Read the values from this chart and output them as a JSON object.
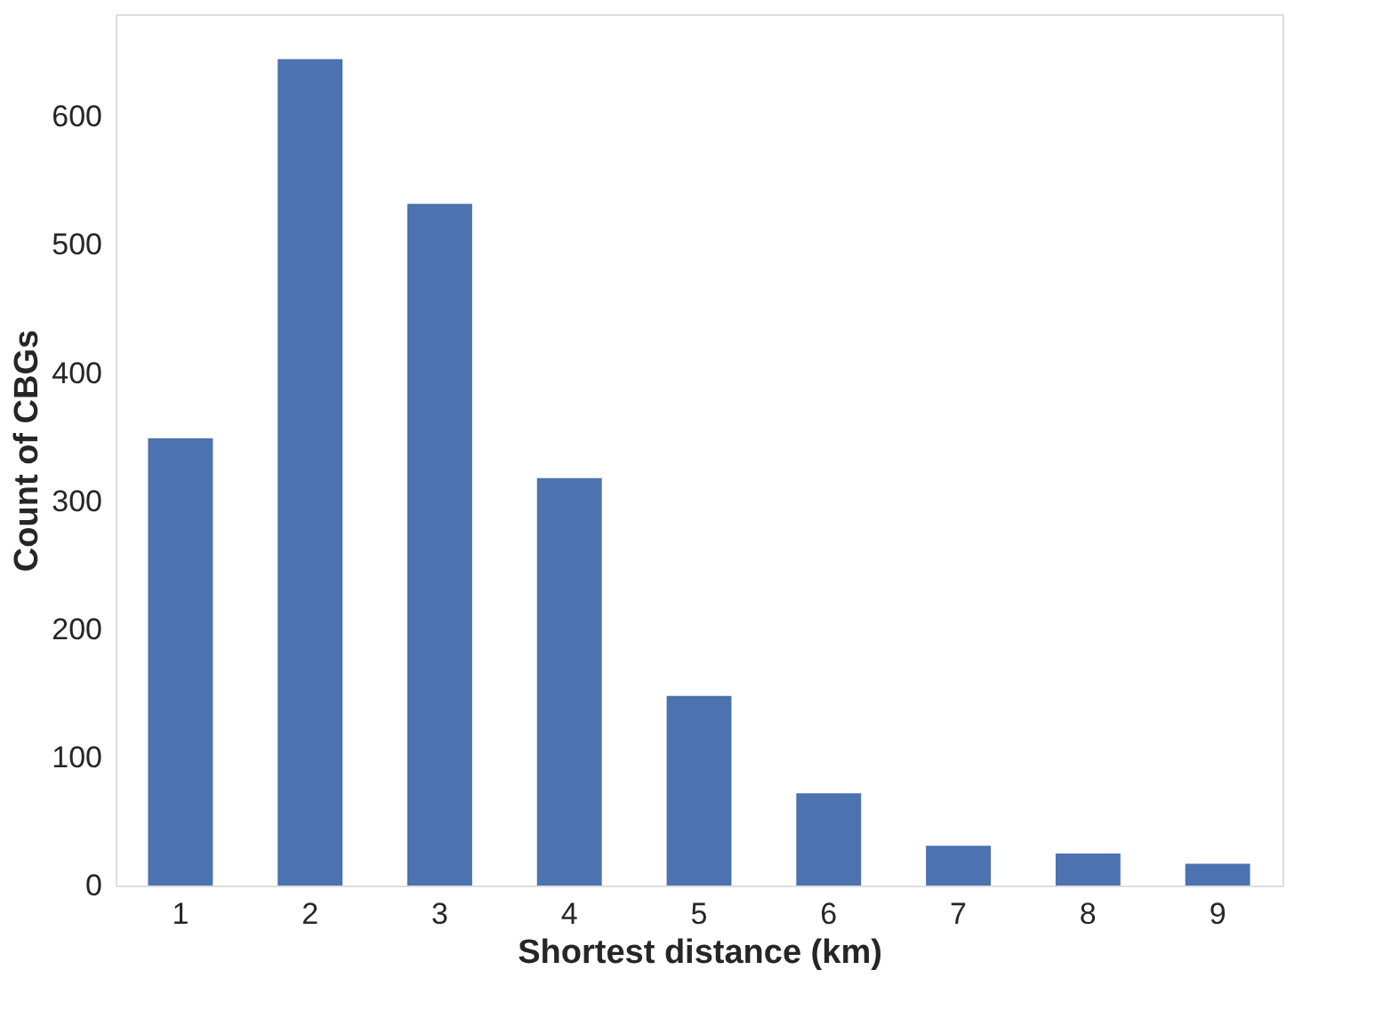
{
  "chart_data": {
    "type": "bar",
    "xlabel": "Shortest distance (km)",
    "ylabel": "Count of CBGs",
    "categories": [
      "1",
      "2",
      "3",
      "4",
      "5",
      "6",
      "7",
      "8",
      "9"
    ],
    "values": [
      349,
      645,
      532,
      318,
      148,
      72,
      31,
      25,
      17
    ],
    "color": "#4c72b0",
    "ylim": [
      0,
      680
    ],
    "yticks": [
      0,
      100,
      200,
      300,
      400,
      500,
      600
    ],
    "grid": false
  }
}
